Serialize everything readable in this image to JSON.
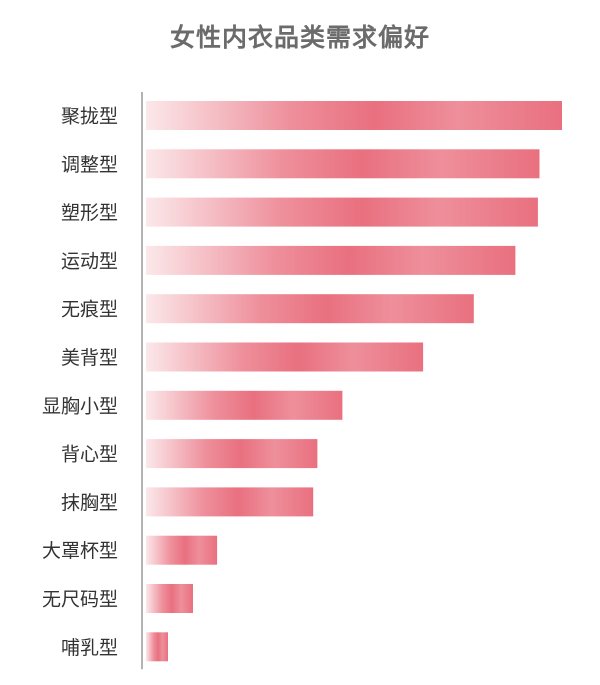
{
  "chart_data": {
    "type": "bar",
    "orientation": "horizontal",
    "title": "女性内衣品类需求偏好",
    "xlabel": "",
    "ylabel": "",
    "categories": [
      "聚拢型",
      "调整型",
      "塑形型",
      "运动型",
      "无痕型",
      "美背型",
      "显胸小型",
      "背心型",
      "抹胸型",
      "大罩杯型",
      "无尺码型",
      "哺乳型"
    ],
    "values": [
      100,
      94.6,
      94.2,
      88.8,
      78.8,
      66.6,
      47.2,
      41.2,
      40.2,
      17.1,
      11.3,
      5.3
    ],
    "xlim": [
      0,
      100
    ],
    "value_axis_visible": false,
    "grid": false,
    "legend": "none",
    "bar_colors": {
      "light": "#fbe8ea",
      "mid": "#ee8f9b",
      "deep": "#e9707f"
    },
    "axis_color": "#9a9a9a"
  }
}
